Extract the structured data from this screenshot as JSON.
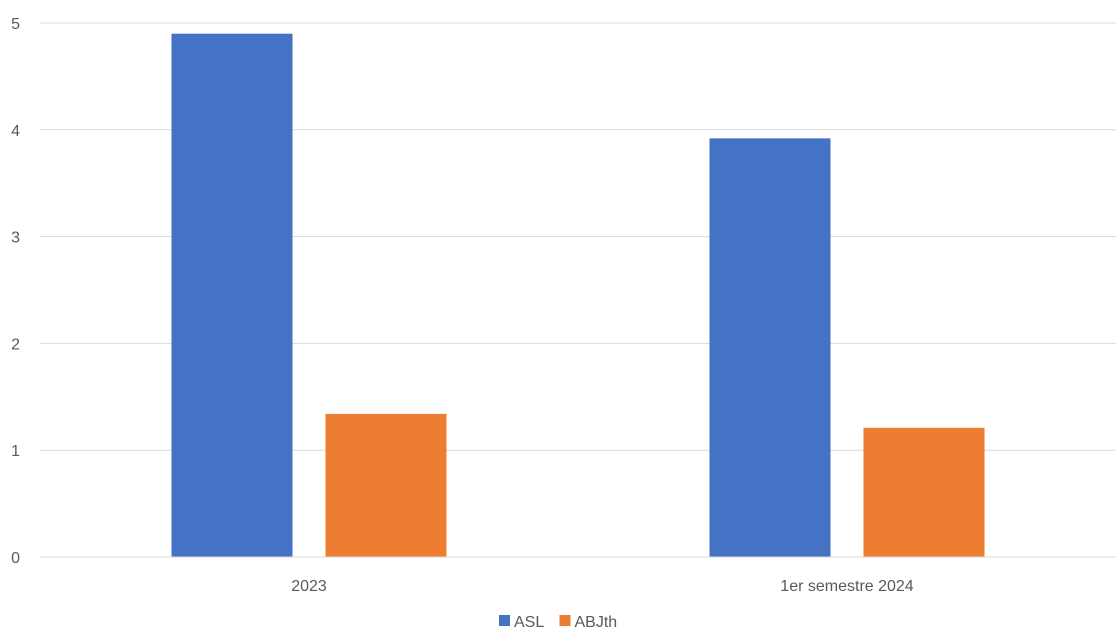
{
  "chart_data": {
    "type": "bar",
    "categories": [
      "2023",
      "1er semestre 2024"
    ],
    "series": [
      {
        "name": "ASL",
        "values": [
          4.9,
          3.92
        ],
        "color": "#4472c4"
      },
      {
        "name": "ABJth",
        "values": [
          1.34,
          1.21
        ],
        "color": "#ed7d31"
      }
    ],
    "ylim": [
      0,
      5
    ],
    "yticks": [
      "0",
      "1",
      "2",
      "3",
      "4",
      "5"
    ],
    "grid": true,
    "legend_position": "bottom"
  }
}
